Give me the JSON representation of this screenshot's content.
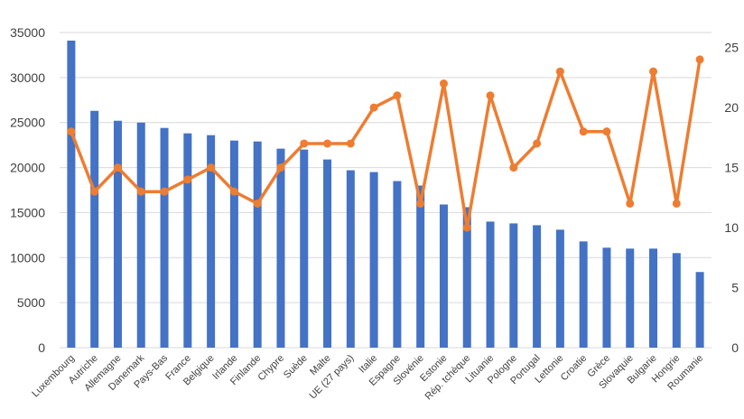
{
  "chart_data": {
    "type": "bar",
    "categories": [
      "Luxembourg",
      "Autriche",
      "Allemagne",
      "Danemark",
      "Pays-Bas",
      "France",
      "Belgique",
      "Irlande",
      "Finlande",
      "Chypre",
      "Suède",
      "Malte",
      "UE (27 pays)",
      "Italie",
      "Espagne",
      "Slovénie",
      "Estonie",
      "Rép. tchèque",
      "Lituanie",
      "Pologne",
      "Portugal",
      "Lettonie",
      "Croatie",
      "Grèce",
      "Slovaquie",
      "Bulgarie",
      "Hongrie",
      "Roumanie"
    ],
    "series": [
      {
        "type": "bar",
        "axis": "left",
        "color": "#4472C4",
        "values": [
          34100,
          26300,
          25200,
          25000,
          24400,
          23800,
          23600,
          23000,
          22900,
          22100,
          22000,
          20900,
          19700,
          19500,
          18500,
          18000,
          15900,
          15600,
          14000,
          13800,
          13600,
          13100,
          11800,
          11100,
          11000,
          11000,
          10500,
          8400
        ]
      },
      {
        "type": "line",
        "axis": "right",
        "color": "#ED7D31",
        "values": [
          18,
          13,
          15,
          13,
          13,
          14,
          15,
          13,
          12,
          15,
          17,
          17,
          17,
          20,
          21,
          12,
          22,
          10,
          21,
          15,
          17,
          23,
          18,
          18,
          12,
          23,
          12,
          24
        ]
      }
    ],
    "left_axis": {
      "min": 0,
      "max": 35000,
      "ticks": [
        "0",
        "5000",
        "10000",
        "15000",
        "20000",
        "25000",
        "30000",
        "35000"
      ]
    },
    "right_axis": {
      "min": 0,
      "max": 26.25,
      "ticks": [
        "0",
        "5",
        "10",
        "15",
        "20",
        "25"
      ]
    },
    "grid": true,
    "gridline_color": "#D9D9D9"
  }
}
